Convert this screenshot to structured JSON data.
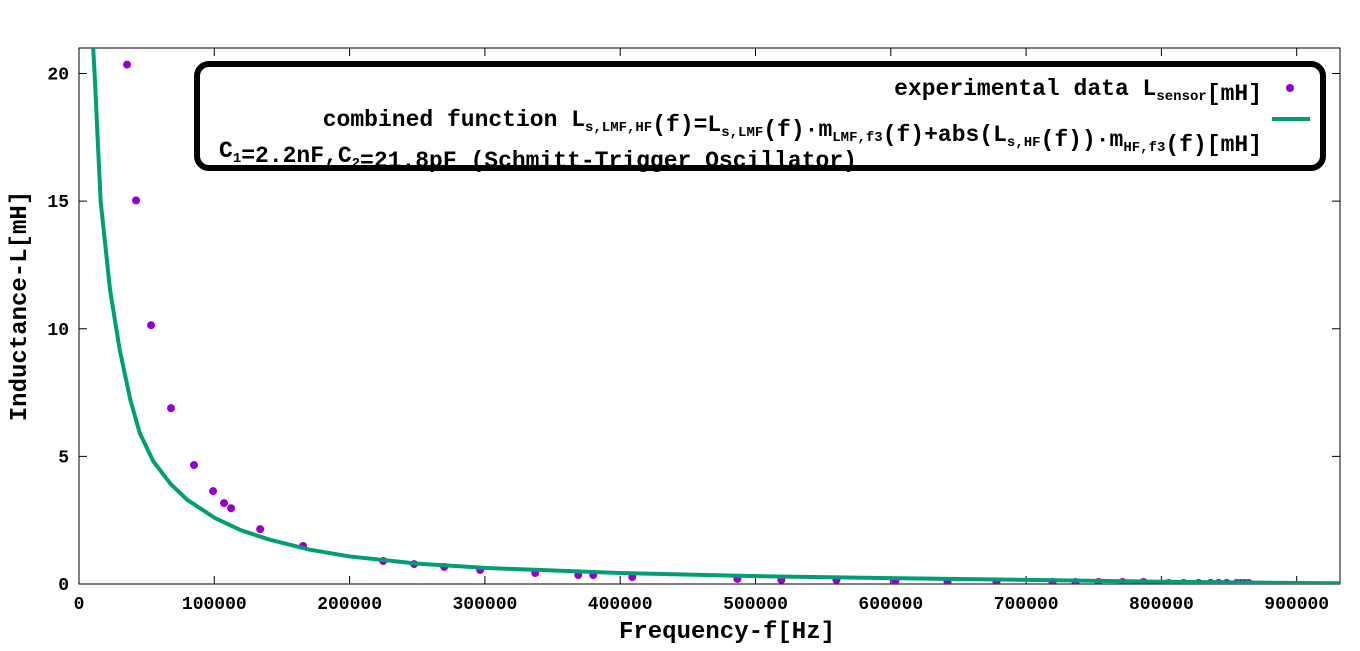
{
  "chart_data": {
    "type": "scatter",
    "xlabel": "Frequency-f[Hz]",
    "ylabel": "Inductance-L[mH]",
    "xlim": [
      0,
      932000
    ],
    "ylim": [
      0,
      21
    ],
    "xticks": [
      0,
      100000,
      200000,
      300000,
      400000,
      500000,
      600000,
      700000,
      800000,
      900000
    ],
    "yticks": [
      0,
      5,
      10,
      15,
      20
    ],
    "series": [
      {
        "name": [
          "experimental data L",
          {
            "sub": "sensor"
          },
          "[mH]"
        ],
        "color": "#9400d3",
        "type": "scatter",
        "x": [
          35500,
          42150,
          53250,
          68000,
          85000,
          99100,
          107200,
          112400,
          133900,
          165600,
          224800,
          247700,
          269900,
          296500,
          337200,
          369000,
          380100,
          408900,
          486600,
          519100,
          559800,
          603400,
          641900,
          678100,
          719500,
          736600,
          753600,
          771300,
          786800,
          805300,
          816400,
          827500,
          836400,
          842300,
          848200,
          855600,
          858600,
          861500,
          864500
        ],
        "values": [
          20.35,
          15.03,
          10.14,
          6.89,
          4.66,
          3.64,
          3.17,
          2.97,
          2.15,
          1.49,
          0.9,
          0.78,
          0.67,
          0.55,
          0.43,
          0.35,
          0.35,
          0.27,
          0.2,
          0.16,
          0.16,
          0.12,
          0.08,
          0.08,
          0.08,
          0.08,
          0.08,
          0.08,
          0.08,
          0.04,
          0.04,
          0.04,
          0.04,
          0.04,
          0.04,
          0.04,
          0.04,
          0.04,
          0.04
        ]
      },
      {
        "name": [
          "combined function L",
          {
            "sub": "s,LMF,HF"
          },
          "(f)=L",
          {
            "sub": "s,LMF"
          },
          "(f)·m",
          {
            "sub": "LMF,f3"
          },
          "(f)+abs(L",
          {
            "sub": "s,HF"
          },
          "(f))·m",
          {
            "sub": "HF,f3"
          },
          "(f)[mH]"
        ],
        "color": "#009e73",
        "type": "line",
        "x": [
          10500,
          12000,
          14000,
          16000,
          18000,
          23000,
          30000,
          38000,
          45000,
          55000,
          68000,
          80000,
          100000,
          120000,
          140000,
          170000,
          200000,
          250000,
          300000,
          400000,
          500000,
          600000,
          700000,
          800000,
          900000,
          932000
        ],
        "values": [
          21,
          19.5,
          17.2,
          15,
          14,
          11.5,
          9.2,
          7.2,
          5.9,
          4.8,
          3.9,
          3.3,
          2.6,
          2.1,
          1.75,
          1.35,
          1.08,
          0.8,
          0.63,
          0.43,
          0.31,
          0.23,
          0.16,
          0.09,
          0.04,
          0.03
        ]
      }
    ],
    "annotation": [
      "C",
      {
        "sub": "1"
      },
      "=2.2nF,C",
      {
        "sub": "2"
      },
      "=21.8pF (Schmitt-Trigger Oscillator)"
    ]
  }
}
